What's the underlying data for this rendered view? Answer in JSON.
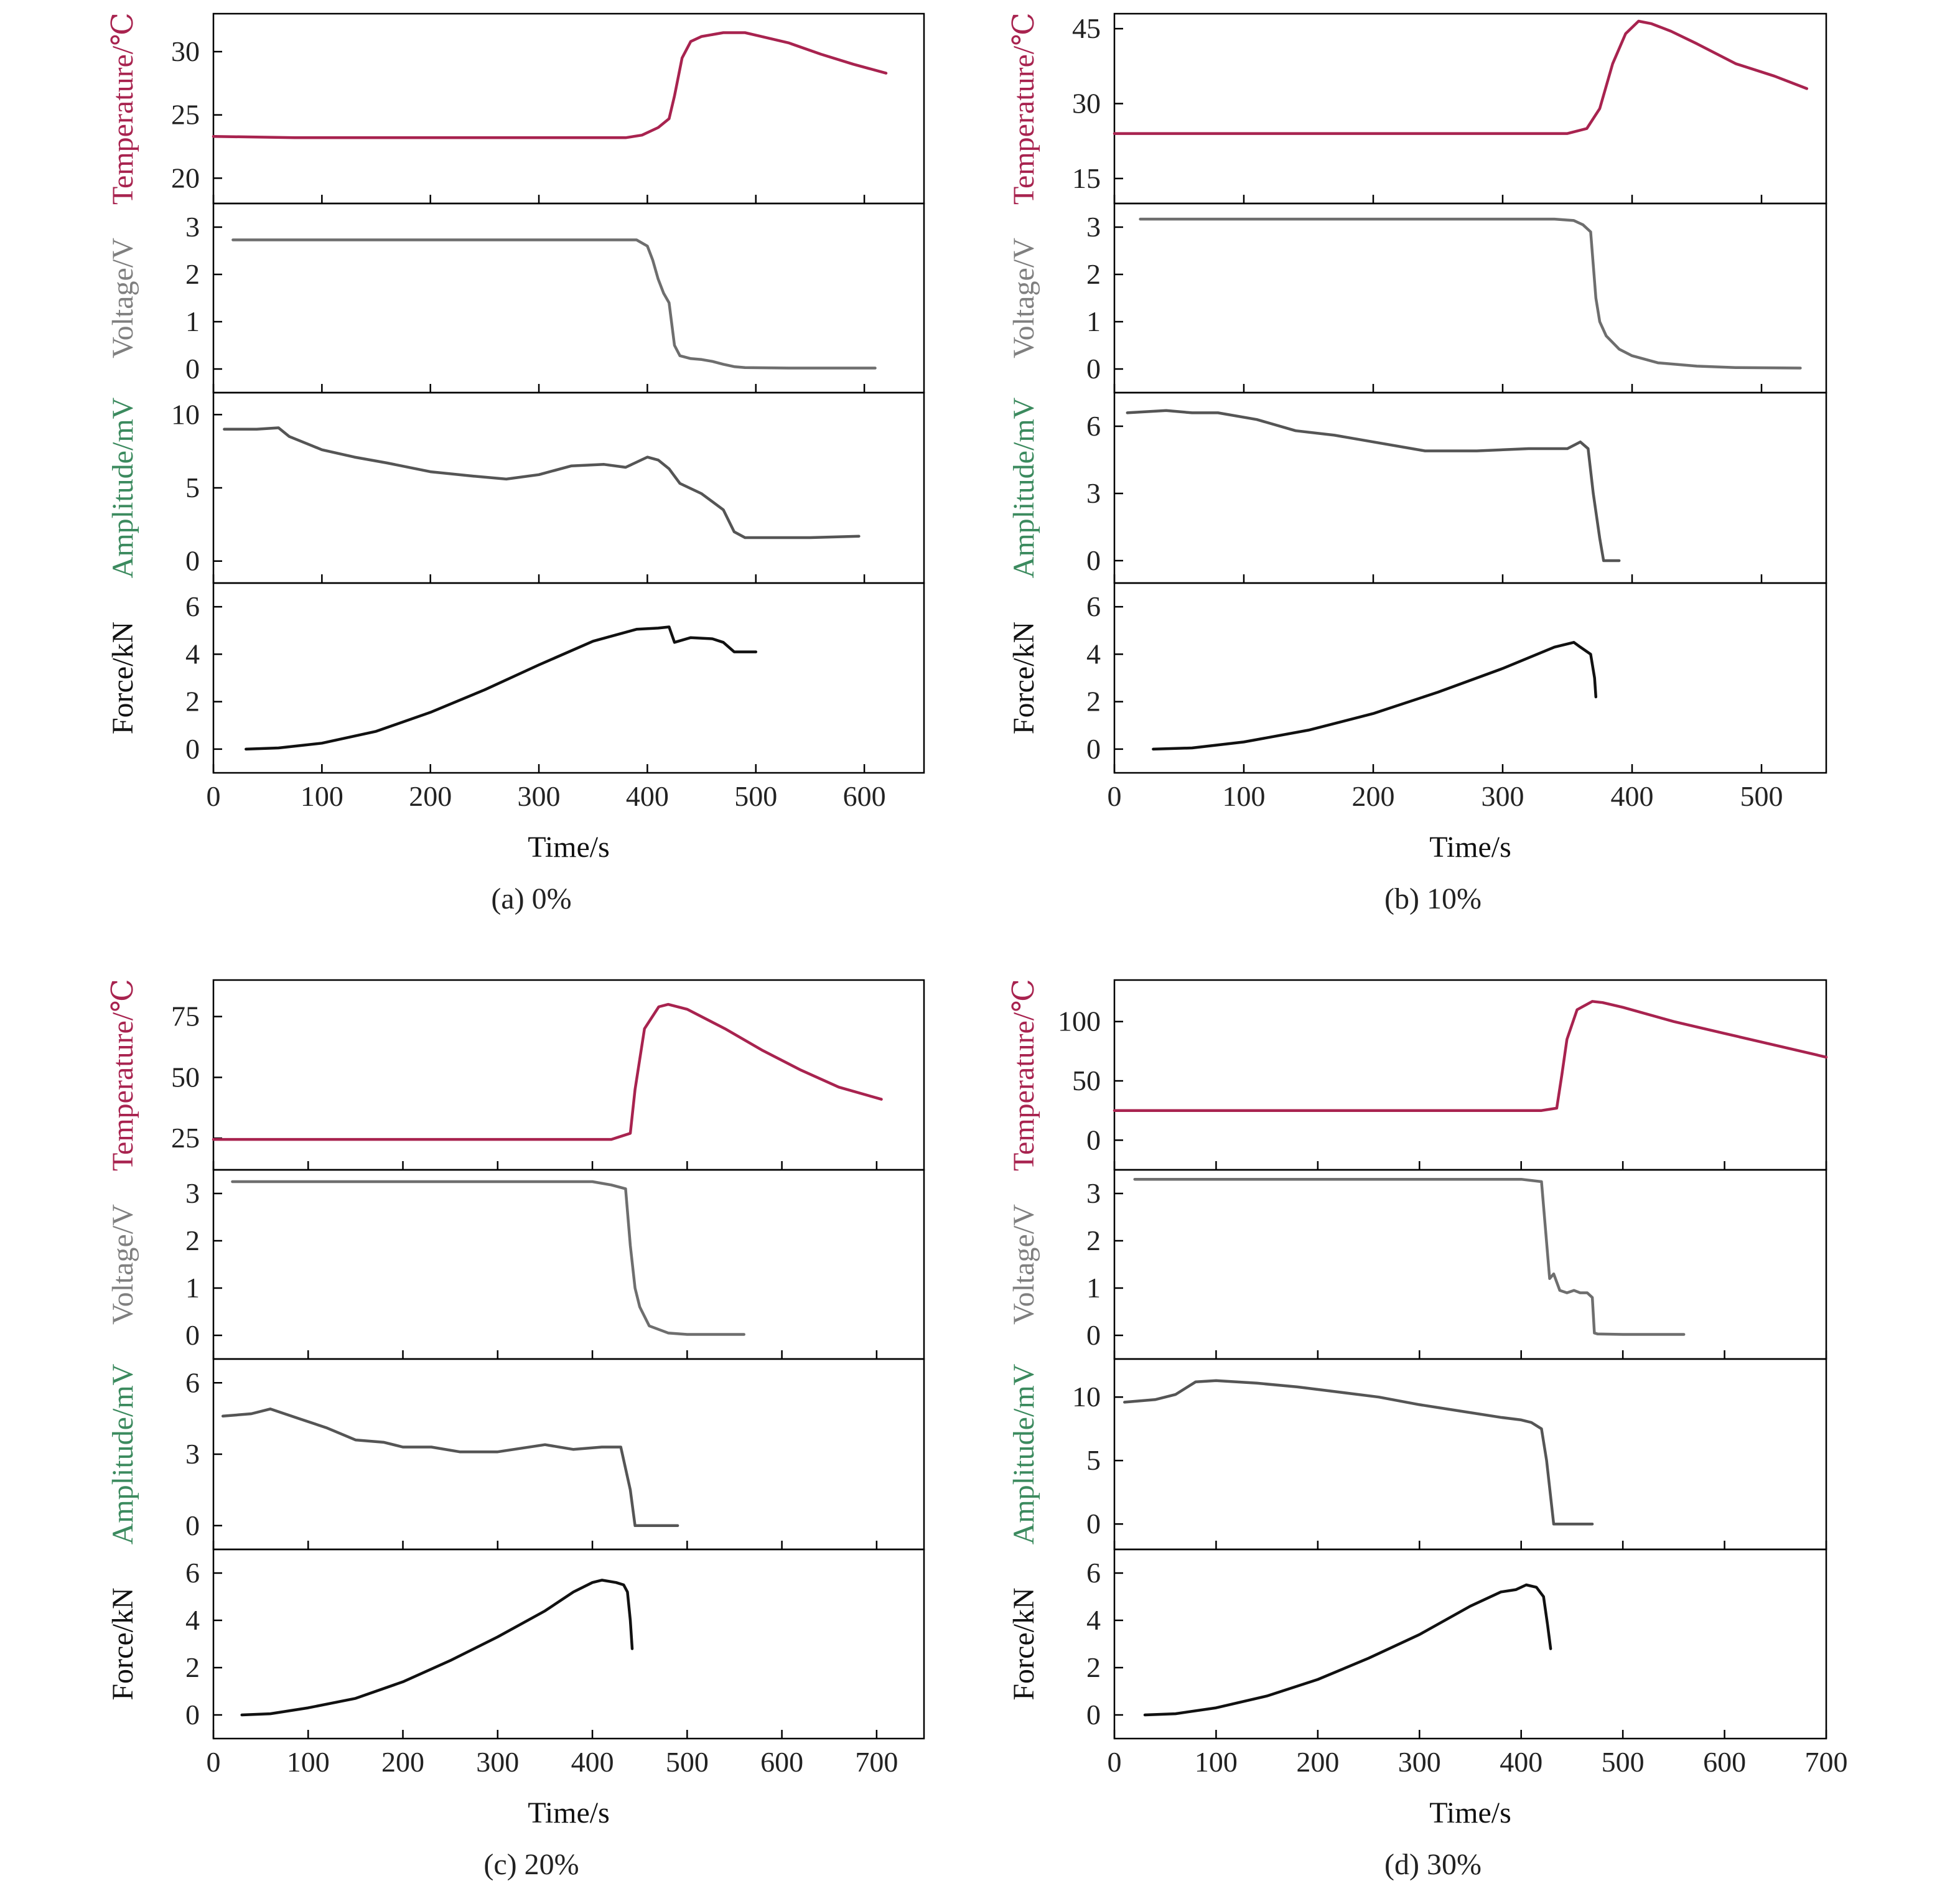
{
  "figure": {
    "background": "#ffffff",
    "frame_color": "#000000"
  },
  "chart_data": [
    {
      "caption": "(a) 0%",
      "xlabel": "Time/s",
      "xlim": [
        0,
        655
      ],
      "xticks": [
        0,
        100,
        200,
        300,
        400,
        500,
        600
      ],
      "panels": [
        {
          "ylabel": "Temperature/℃",
          "label_color": "#a8234f",
          "line_color": "#a8234f",
          "ylim": [
            18,
            33
          ],
          "yticks": [
            20,
            25,
            30
          ],
          "x": [
            0,
            75,
            200,
            380,
            395,
            410,
            420,
            425,
            432,
            440,
            450,
            470,
            490,
            500,
            530,
            560,
            590,
            620
          ],
          "y": [
            23.3,
            23.2,
            23.2,
            23.2,
            23.4,
            24,
            24.7,
            26.5,
            29.5,
            30.8,
            31.2,
            31.5,
            31.5,
            31.3,
            30.7,
            29.8,
            29,
            28.3
          ]
        },
        {
          "ylabel": "Voltage/V",
          "label_color": "#7f7f7f",
          "line_color": "#6e6e6e",
          "ylim": [
            -0.5,
            3.5
          ],
          "yticks": [
            0,
            1,
            2,
            3
          ],
          "x": [
            18,
            380,
            390,
            400,
            405,
            410,
            415,
            420,
            425,
            430,
            440,
            450,
            460,
            470,
            480,
            490,
            530,
            560,
            610
          ],
          "y": [
            2.73,
            2.73,
            2.73,
            2.6,
            2.3,
            1.9,
            1.6,
            1.4,
            0.5,
            0.28,
            0.22,
            0.2,
            0.16,
            0.1,
            0.05,
            0.03,
            0.02,
            0.02,
            0.02
          ]
        },
        {
          "ylabel": "Amplitude/mV",
          "label_color": "#3b8a5e",
          "line_color": "#555555",
          "ylim": [
            -1.5,
            11.5
          ],
          "yticks": [
            0,
            5,
            10
          ],
          "x": [
            10,
            40,
            60,
            70,
            90,
            100,
            130,
            160,
            200,
            240,
            270,
            300,
            330,
            360,
            380,
            400,
            410,
            420,
            430,
            450,
            470,
            480,
            490,
            520,
            550,
            595
          ],
          "y": [
            9,
            9,
            9.1,
            8.5,
            7.9,
            7.6,
            7.1,
            6.7,
            6.1,
            5.8,
            5.6,
            5.9,
            6.5,
            6.6,
            6.4,
            7.1,
            6.9,
            6.3,
            5.3,
            4.6,
            3.5,
            2,
            1.6,
            1.6,
            1.6,
            1.7
          ]
        },
        {
          "ylabel": "Force/kN",
          "label_color": "#111111",
          "line_color": "#111111",
          "ylim": [
            -1,
            7
          ],
          "yticks": [
            0,
            2,
            4,
            6
          ],
          "x": [
            30,
            60,
            100,
            150,
            200,
            250,
            300,
            350,
            390,
            410,
            420,
            425,
            440,
            460,
            470,
            480,
            500
          ],
          "y": [
            0,
            0.05,
            0.25,
            0.75,
            1.55,
            2.5,
            3.55,
            4.55,
            5.05,
            5.1,
            5.15,
            4.5,
            4.7,
            4.65,
            4.5,
            4.1,
            4.1
          ]
        }
      ]
    },
    {
      "caption": "(b) 10%",
      "xlabel": "Time/s",
      "xlim": [
        0,
        550
      ],
      "xticks": [
        0,
        100,
        200,
        300,
        400,
        500
      ],
      "panels": [
        {
          "ylabel": "Temperature/℃",
          "label_color": "#a8234f",
          "line_color": "#a8234f",
          "ylim": [
            10,
            48
          ],
          "yticks": [
            15,
            30,
            45
          ],
          "x": [
            0,
            200,
            350,
            365,
            375,
            385,
            395,
            405,
            415,
            430,
            450,
            480,
            510,
            535
          ],
          "y": [
            24,
            24,
            24,
            25,
            29,
            38,
            44,
            46.5,
            46,
            44.5,
            42,
            38,
            35.5,
            33
          ]
        },
        {
          "ylabel": "Voltage/V",
          "label_color": "#7f7f7f",
          "line_color": "#6e6e6e",
          "ylim": [
            -0.5,
            3.5
          ],
          "yticks": [
            0,
            1,
            2,
            3
          ],
          "x": [
            20,
            340,
            355,
            362,
            368,
            372,
            375,
            380,
            390,
            400,
            420,
            450,
            480,
            530
          ],
          "y": [
            3.17,
            3.17,
            3.14,
            3.05,
            2.9,
            1.5,
            1.0,
            0.7,
            0.42,
            0.28,
            0.13,
            0.06,
            0.03,
            0.02
          ]
        },
        {
          "ylabel": "Amplitude/mV",
          "label_color": "#3b8a5e",
          "line_color": "#555555",
          "ylim": [
            -1,
            7.5
          ],
          "yticks": [
            0,
            3,
            6
          ],
          "x": [
            10,
            40,
            60,
            80,
            110,
            140,
            170,
            200,
            240,
            280,
            320,
            350,
            360,
            366,
            370,
            375,
            378,
            390
          ],
          "y": [
            6.6,
            6.7,
            6.6,
            6.6,
            6.3,
            5.8,
            5.6,
            5.3,
            4.9,
            4.9,
            5.0,
            5.0,
            5.3,
            5.0,
            3.0,
            1.0,
            0,
            0
          ]
        },
        {
          "ylabel": "Force/kN",
          "label_color": "#111111",
          "line_color": "#111111",
          "ylim": [
            -1,
            7
          ],
          "yticks": [
            0,
            2,
            4,
            6
          ],
          "x": [
            30,
            60,
            100,
            150,
            200,
            250,
            300,
            340,
            355,
            360,
            368,
            371,
            372
          ],
          "y": [
            0,
            0.05,
            0.3,
            0.8,
            1.5,
            2.4,
            3.4,
            4.3,
            4.5,
            4.3,
            4.0,
            3.0,
            2.2
          ]
        }
      ]
    },
    {
      "caption": "(c) 20%",
      "xlabel": "Time/s",
      "xlim": [
        0,
        750
      ],
      "xticks": [
        0,
        100,
        200,
        300,
        400,
        500,
        600,
        700
      ],
      "panels": [
        {
          "ylabel": "Temperature/℃",
          "label_color": "#a8234f",
          "line_color": "#a8234f",
          "ylim": [
            12,
            90
          ],
          "yticks": [
            25,
            50,
            75
          ],
          "x": [
            0,
            200,
            420,
            440,
            445,
            455,
            470,
            480,
            500,
            540,
            580,
            620,
            660,
            705
          ],
          "y": [
            24.5,
            24.5,
            24.5,
            27,
            45,
            70,
            79,
            80,
            78,
            70,
            61,
            53,
            46,
            41
          ]
        },
        {
          "ylabel": "Voltage/V",
          "label_color": "#7f7f7f",
          "line_color": "#6e6e6e",
          "ylim": [
            -0.5,
            3.5
          ],
          "yticks": [
            0,
            1,
            2,
            3
          ],
          "x": [
            20,
            400,
            420,
            435,
            440,
            445,
            450,
            460,
            480,
            500,
            560
          ],
          "y": [
            3.25,
            3.25,
            3.18,
            3.1,
            1.9,
            1.0,
            0.6,
            0.2,
            0.05,
            0.02,
            0.02
          ]
        },
        {
          "ylabel": "Amplitude/mV",
          "label_color": "#3b8a5e",
          "line_color": "#555555",
          "ylim": [
            -1,
            7
          ],
          "yticks": [
            0,
            3,
            6
          ],
          "x": [
            10,
            40,
            60,
            90,
            120,
            150,
            180,
            200,
            230,
            260,
            300,
            350,
            380,
            410,
            430,
            440,
            445,
            490
          ],
          "y": [
            4.6,
            4.7,
            4.9,
            4.5,
            4.1,
            3.6,
            3.5,
            3.3,
            3.3,
            3.1,
            3.1,
            3.4,
            3.2,
            3.3,
            3.3,
            1.5,
            0,
            0
          ]
        },
        {
          "ylabel": "Force/kN",
          "label_color": "#111111",
          "line_color": "#111111",
          "ylim": [
            -1,
            7
          ],
          "yticks": [
            0,
            2,
            4,
            6
          ],
          "x": [
            30,
            60,
            100,
            150,
            200,
            250,
            300,
            350,
            380,
            400,
            410,
            425,
            433,
            437,
            440,
            442
          ],
          "y": [
            0,
            0.05,
            0.3,
            0.7,
            1.4,
            2.3,
            3.3,
            4.4,
            5.2,
            5.6,
            5.7,
            5.6,
            5.5,
            5.2,
            4.0,
            2.8
          ]
        }
      ]
    },
    {
      "caption": "(d) 30%",
      "xlabel": "Time/s",
      "xlim": [
        0,
        700
      ],
      "xticks": [
        0,
        100,
        200,
        300,
        400,
        500,
        600,
        700
      ],
      "panels": [
        {
          "ylabel": "Temperature/℃",
          "label_color": "#a8234f",
          "line_color": "#a8234f",
          "ylim": [
            -25,
            135
          ],
          "yticks": [
            0,
            50,
            100
          ],
          "x": [
            0,
            200,
            420,
            435,
            440,
            445,
            455,
            470,
            480,
            500,
            550,
            600,
            650,
            700
          ],
          "y": [
            25,
            25,
            25,
            27,
            55,
            85,
            110,
            117,
            116,
            112,
            100,
            90,
            80,
            70
          ]
        },
        {
          "ylabel": "Voltage/V",
          "label_color": "#7f7f7f",
          "line_color": "#6e6e6e",
          "ylim": [
            -0.5,
            3.5
          ],
          "yticks": [
            0,
            1,
            2,
            3
          ],
          "x": [
            20,
            400,
            420,
            428,
            432,
            438,
            445,
            452,
            458,
            465,
            470,
            472,
            475,
            500,
            560
          ],
          "y": [
            3.3,
            3.3,
            3.25,
            1.2,
            1.3,
            0.95,
            0.9,
            0.95,
            0.9,
            0.9,
            0.8,
            0.05,
            0.03,
            0.02,
            0.02
          ]
        },
        {
          "ylabel": "Amplitude/mV",
          "label_color": "#3b8a5e",
          "line_color": "#555555",
          "ylim": [
            -2,
            13
          ],
          "yticks": [
            0,
            5,
            10
          ],
          "x": [
            10,
            40,
            60,
            80,
            100,
            140,
            180,
            220,
            260,
            300,
            340,
            380,
            400,
            410,
            420,
            425,
            432,
            440,
            470
          ],
          "y": [
            9.6,
            9.8,
            10.2,
            11.2,
            11.3,
            11.1,
            10.8,
            10.4,
            10,
            9.4,
            8.9,
            8.4,
            8.2,
            8.0,
            7.5,
            5.0,
            0,
            0,
            0
          ]
        },
        {
          "ylabel": "Force/kN",
          "label_color": "#111111",
          "line_color": "#111111",
          "ylim": [
            -1,
            7
          ],
          "yticks": [
            0,
            2,
            4,
            6
          ],
          "x": [
            30,
            60,
            100,
            150,
            200,
            250,
            300,
            350,
            380,
            395,
            405,
            415,
            422,
            426,
            429
          ],
          "y": [
            0,
            0.05,
            0.3,
            0.8,
            1.5,
            2.4,
            3.4,
            4.6,
            5.2,
            5.3,
            5.5,
            5.4,
            5.0,
            3.8,
            2.8
          ]
        }
      ]
    }
  ]
}
